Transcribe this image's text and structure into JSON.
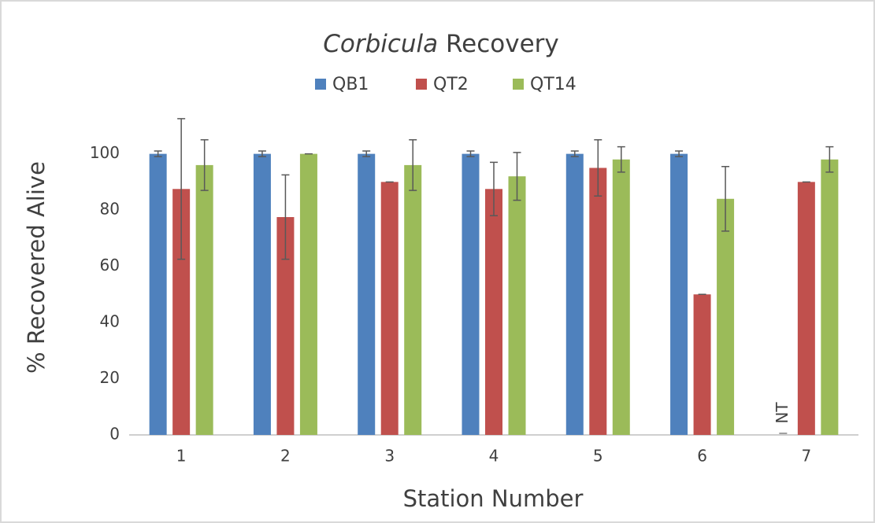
{
  "chart_data": {
    "type": "bar",
    "title": [
      "Corbicula",
      "Recovery"
    ],
    "title_italic": [
      true,
      false
    ],
    "xlabel": "Station Number",
    "ylabel": "% Recovered Alive",
    "categories": [
      "1",
      "2",
      "3",
      "4",
      "5",
      "6",
      "7"
    ],
    "series": [
      {
        "name": "QB1",
        "color": "#4f81bd",
        "values": [
          100,
          100,
          100,
          100,
          100,
          100,
          null
        ],
        "errors": [
          1,
          1,
          1,
          1,
          1,
          1,
          null
        ]
      },
      {
        "name": "QT2",
        "color": "#c0504d",
        "values": [
          87.5,
          77.5,
          90,
          87.5,
          95,
          50,
          90
        ],
        "errors": [
          25,
          15,
          0,
          9.5,
          10,
          0,
          0
        ]
      },
      {
        "name": "QT14",
        "color": "#9bbb59",
        "values": [
          96,
          100,
          96,
          92,
          98,
          84,
          98
        ],
        "errors": [
          9,
          0,
          9,
          8.5,
          4.5,
          11.5,
          4.5
        ]
      }
    ],
    "annotations": [
      {
        "text": "NT",
        "series": 0,
        "category": 6
      }
    ],
    "ylim": [
      0,
      115
    ],
    "yticks": [
      0,
      20,
      40,
      60,
      80,
      100
    ],
    "grid": false,
    "legend": "top"
  }
}
